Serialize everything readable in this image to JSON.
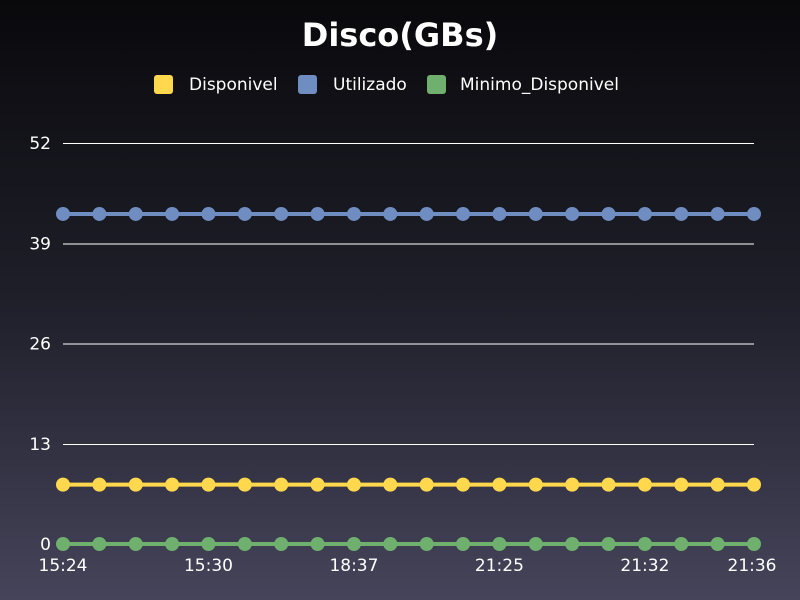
{
  "chart_data": {
    "type": "line",
    "title": "Disco(GBs)",
    "xlabel": "",
    "ylabel": "",
    "ylim": [
      0,
      52
    ],
    "y_ticks": [
      0,
      13,
      26,
      39,
      52
    ],
    "grid": true,
    "legend_position": "top",
    "x_tick_labels": [
      {
        "index": 0,
        "label": "15:24"
      },
      {
        "index": 4,
        "label": "15:30"
      },
      {
        "index": 8,
        "label": "18:37"
      },
      {
        "index": 12,
        "label": "21:25"
      },
      {
        "index": 16,
        "label": "21:32"
      },
      {
        "index": 19,
        "label": "21:36"
      }
    ],
    "point_count": 20,
    "series": [
      {
        "name": "Disponivel",
        "color": "#ffd84d",
        "values": [
          7.7,
          7.7,
          7.7,
          7.7,
          7.7,
          7.7,
          7.7,
          7.7,
          7.7,
          7.7,
          7.7,
          7.7,
          7.7,
          7.7,
          7.7,
          7.7,
          7.7,
          7.7,
          7.7,
          7.7
        ]
      },
      {
        "name": "Utilizado",
        "color": "#6f8dc1",
        "values": [
          42.8,
          42.8,
          42.8,
          42.8,
          42.8,
          42.8,
          42.8,
          42.8,
          42.8,
          42.8,
          42.8,
          42.8,
          42.8,
          42.8,
          42.8,
          42.8,
          42.8,
          42.8,
          42.8,
          42.8
        ]
      },
      {
        "name": "Minimo_Disponivel",
        "color": "#6fb06f",
        "values": [
          0,
          0,
          0,
          0,
          0,
          0,
          0,
          0,
          0,
          0,
          0,
          0,
          0,
          0,
          0,
          0,
          0,
          0,
          0,
          0
        ]
      }
    ]
  }
}
